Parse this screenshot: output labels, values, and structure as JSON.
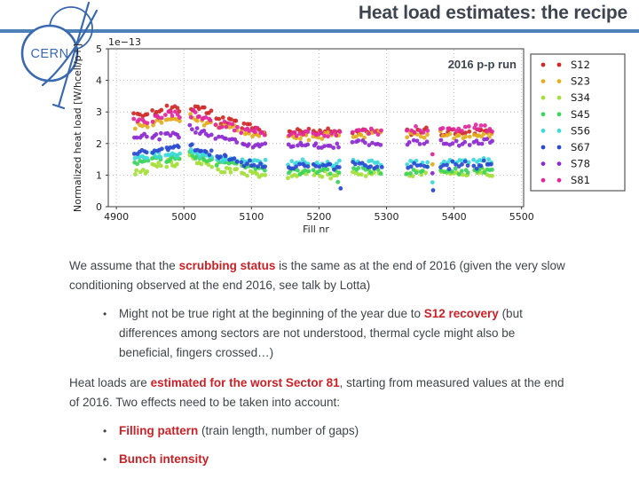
{
  "slide": {
    "title": "Heat load estimates: the recipe",
    "logo_text": "CERN",
    "colors": {
      "accent_blue": "#4f81b9",
      "logo_blue": "#3a68b0",
      "title_text": "#3e4550",
      "body_text": "#3f4449",
      "accent_red": "#cc2027"
    }
  },
  "chart_data": {
    "type": "scatter",
    "annotation": "2016 p-p run",
    "xlabel": "Fill nr",
    "ylabel": "Normalized heat load [W/hcell/p+]",
    "y_offset_label": "1e−13",
    "xlim": [
      4888,
      5503
    ],
    "ylim": [
      0,
      5
    ],
    "xticks": [
      4900,
      5000,
      5100,
      5200,
      5300,
      5400,
      5500
    ],
    "yticks": [
      0,
      1,
      2,
      3,
      4,
      5
    ],
    "grid": "dotted",
    "legend_position": "outside-right",
    "series": [
      {
        "name": "S12",
        "color": "#cf2a27"
      },
      {
        "name": "S23",
        "color": "#e3ae1e"
      },
      {
        "name": "S34",
        "color": "#a4de3a"
      },
      {
        "name": "S45",
        "color": "#3bd45c"
      },
      {
        "name": "S56",
        "color": "#3bd9d9"
      },
      {
        "name": "S67",
        "color": "#2a4bd0"
      },
      {
        "name": "S78",
        "color": "#8c2ad0"
      },
      {
        "name": "S81",
        "color": "#e0289e"
      }
    ],
    "clusters": [
      {
        "x0": 4925,
        "x1": 4948,
        "n": 6,
        "slope": 0,
        "means": {
          "S12": 2.95,
          "S81": 2.72,
          "S23": 2.6,
          "S78": 2.2,
          "S67": 1.72,
          "S56": 1.58,
          "S45": 1.45,
          "S34": 1.12
        }
      },
      {
        "x0": 4952,
        "x1": 4968,
        "n": 5,
        "slope": 0,
        "means": {
          "S12": 3.02,
          "S81": 2.8,
          "S23": 2.66,
          "S78": 2.24,
          "S67": 1.78,
          "S56": 1.6,
          "S45": 1.48,
          "S34": 1.28
        }
      },
      {
        "x0": 4972,
        "x1": 4995,
        "n": 7,
        "slope": 0,
        "means": {
          "S12": 3.12,
          "S81": 2.9,
          "S23": 2.75,
          "S78": 2.3,
          "S67": 1.85,
          "S56": 1.65,
          "S45": 1.52,
          "S34": 1.38
        }
      },
      {
        "x0": 5008,
        "x1": 5042,
        "n": 10,
        "slope": -0.25,
        "means": {
          "S12": 3.05,
          "S81": 2.85,
          "S23": 2.72,
          "S78": 2.4,
          "S67": 1.82,
          "S56": 1.65,
          "S45": 1.55,
          "S34": 1.4
        }
      },
      {
        "x0": 5046,
        "x1": 5080,
        "n": 9,
        "slope": -0.12,
        "means": {
          "S12": 2.7,
          "S81": 2.58,
          "S23": 2.5,
          "S78": 2.15,
          "S67": 1.58,
          "S56": 1.52,
          "S45": 1.38,
          "S34": 1.18
        }
      },
      {
        "x0": 5084,
        "x1": 5122,
        "n": 10,
        "slope": -0.1,
        "means": {
          "S12": 2.5,
          "S81": 2.42,
          "S23": 2.3,
          "S78": 1.98,
          "S67": 1.36,
          "S56": 1.46,
          "S45": 1.26,
          "S34": 1.06
        }
      },
      {
        "x0": 5153,
        "x1": 5186,
        "n": 8,
        "slope": 0,
        "means": {
          "S12": 2.38,
          "S81": 2.34,
          "S23": 2.22,
          "S78": 1.92,
          "S67": 1.3,
          "S56": 1.4,
          "S45": 1.15,
          "S34": 1.03
        }
      },
      {
        "x0": 5190,
        "x1": 5232,
        "n": 10,
        "slope": 0,
        "means": {
          "S12": 2.36,
          "S81": 2.32,
          "S23": 2.24,
          "S78": 1.92,
          "S67": 1.28,
          "S56": 1.4,
          "S45": 1.12,
          "S34": 1.0
        }
      },
      {
        "x0": 5248,
        "x1": 5294,
        "n": 10,
        "slope": 0,
        "means": {
          "S12": 2.36,
          "S81": 2.42,
          "S23": 2.26,
          "S78": 2.0,
          "S67": 1.3,
          "S56": 1.4,
          "S45": 1.15,
          "S34": 1.05
        }
      },
      {
        "x0": 5328,
        "x1": 5362,
        "n": 7,
        "slope": 0,
        "means": {
          "S12": 2.38,
          "S81": 2.45,
          "S23": 2.24,
          "S78": 2.0,
          "S67": 1.3,
          "S56": 1.4,
          "S45": 1.15,
          "S34": 1.05
        }
      },
      {
        "x0": 5378,
        "x1": 5424,
        "n": 10,
        "slope": 0,
        "means": {
          "S12": 2.38,
          "S81": 2.45,
          "S23": 2.26,
          "S78": 2.02,
          "S67": 1.32,
          "S56": 1.42,
          "S45": 1.15,
          "S34": 1.03
        }
      },
      {
        "x0": 5428,
        "x1": 5458,
        "n": 8,
        "slope": 0,
        "means": {
          "S12": 2.42,
          "S81": 2.5,
          "S23": 2.28,
          "S78": 2.05,
          "S67": 1.32,
          "S56": 1.44,
          "S45": 1.18,
          "S34": 1.05
        }
      }
    ],
    "outliers": [
      {
        "series": "S81",
        "x": 5368,
        "y": 1.66
      },
      {
        "series": "S23",
        "x": 5368,
        "y": 1.34
      },
      {
        "series": "S78",
        "x": 5368,
        "y": 1.06
      },
      {
        "series": "S56",
        "x": 5368,
        "y": 0.77
      },
      {
        "series": "S67",
        "x": 5369,
        "y": 0.52
      },
      {
        "series": "S45",
        "x": 5228,
        "y": 0.78
      },
      {
        "series": "S67",
        "x": 5232,
        "y": 0.58
      }
    ]
  },
  "body": {
    "bullet_glyph": "•",
    "paragraphs": [
      {
        "segments": [
          {
            "t": "We assume that the "
          },
          {
            "t": "scrubbing status",
            "b": true
          },
          {
            "t": " is the same as at the end of 2016 (given the very slow conditioning observed at the end 2016, see talk by Lotta)"
          }
        ]
      },
      {
        "segments": [
          {
            "t": "Might not be true right at the beginning of the year due to "
          },
          {
            "t": "S12 recovery",
            "b": true
          },
          {
            "t": " (but differences among sectors are not understood, thermal cycle might also be beneficial, fingers crossed…)"
          }
        ]
      },
      {
        "segments": [
          {
            "t": "Heat loads are "
          },
          {
            "t": "estimated for the worst Sector 81",
            "b": true
          },
          {
            "t": ", starting from measured values at the end of 2016. Two effects need to be taken into account:"
          }
        ]
      },
      {
        "segments": [
          {
            "t": "Filling pattern",
            "b": true
          },
          {
            "t": " (train length, number of gaps)"
          }
        ]
      },
      {
        "segments": [
          {
            "t": "Bunch intensity",
            "b": true
          }
        ]
      }
    ]
  }
}
